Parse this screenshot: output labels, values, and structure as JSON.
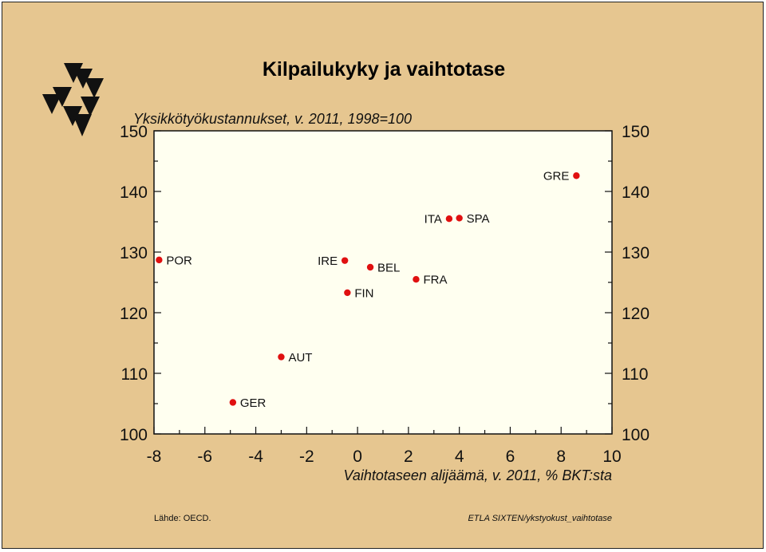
{
  "chart_data": {
    "type": "scatter",
    "title": "Kilpailukyky ja vaihtotase",
    "ylabel": "Yksikkötyökustannukset, v. 2011, 1998=100",
    "xlabel": "Vaihtotaseen alijäämä, v. 2011, % BKT:sta",
    "xlim": [
      -8,
      10
    ],
    "ylim": [
      100,
      150
    ],
    "xticks": [
      "-8",
      "-6",
      "-4",
      "-2",
      "0",
      "2",
      "4",
      "6",
      "8",
      "10"
    ],
    "yticks": [
      "100",
      "110",
      "120",
      "130",
      "140",
      "150"
    ],
    "grid": false,
    "points": [
      {
        "label": "POR",
        "x": -7.8,
        "y": 128.7,
        "label_side": "right"
      },
      {
        "label": "GER",
        "x": -4.9,
        "y": 105.2,
        "label_side": "right"
      },
      {
        "label": "AUT",
        "x": -3.0,
        "y": 112.7,
        "label_side": "right"
      },
      {
        "label": "IRE",
        "x": -0.5,
        "y": 128.6,
        "label_side": "left"
      },
      {
        "label": "FIN",
        "x": -0.4,
        "y": 123.3,
        "label_side": "right"
      },
      {
        "label": "BEL",
        "x": 0.5,
        "y": 127.5,
        "label_side": "right"
      },
      {
        "label": "FRA",
        "x": 2.3,
        "y": 125.5,
        "label_side": "right"
      },
      {
        "label": "ITA",
        "x": 3.6,
        "y": 135.5,
        "label_side": "left"
      },
      {
        "label": "SPA",
        "x": 4.0,
        "y": 135.6,
        "label_side": "right"
      },
      {
        "label": "GRE",
        "x": 8.6,
        "y": 142.6,
        "label_side": "left"
      }
    ],
    "colors": {
      "point": "#e01010",
      "plot_bg": "#fffff0",
      "frame_bg": "#e6c690"
    }
  },
  "footer": {
    "source": "Lähde:    OECD.",
    "credit": "ETLA  SIXTEN/ykstyokust_vaihtotase"
  }
}
